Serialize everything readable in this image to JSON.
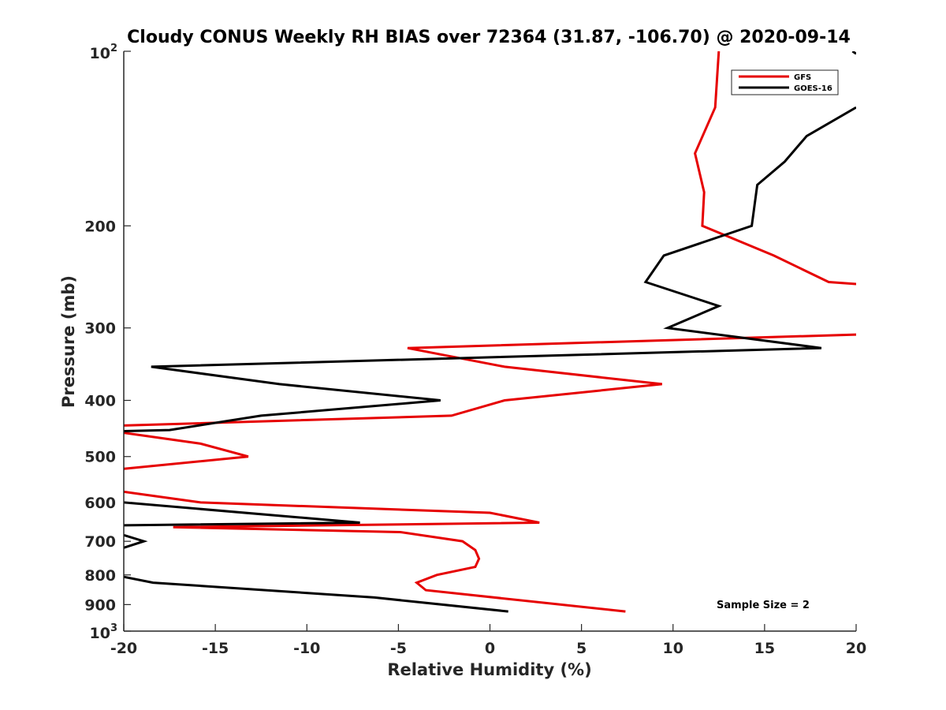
{
  "chart_data": {
    "type": "line",
    "title": "Cloudy CONUS Weekly RH BIAS over 72364 (31.87, -106.70) @ 2020-09-14",
    "xlabel": "Relative Humidity (%)",
    "ylabel": "Pressure (mb)",
    "xlim": [
      -20,
      20
    ],
    "ylim": [
      100,
      1000
    ],
    "y_scale": "log",
    "y_reversed": true,
    "x_ticks": [
      -20,
      -15,
      -10,
      -5,
      0,
      5,
      10,
      15,
      20
    ],
    "x_tick_labels": [
      "-20",
      "-15",
      "-10",
      "-5",
      "0",
      "5",
      "10",
      "15",
      "20"
    ],
    "y_tick_labels": [
      {
        "value": 100,
        "base": "10",
        "exp": "2"
      },
      {
        "value": 200,
        "base": "200",
        "exp": ""
      },
      {
        "value": 300,
        "base": "300",
        "exp": ""
      },
      {
        "value": 400,
        "base": "400",
        "exp": ""
      },
      {
        "value": 500,
        "base": "500",
        "exp": ""
      },
      {
        "value": 600,
        "base": "600",
        "exp": ""
      },
      {
        "value": 700,
        "base": "700",
        "exp": ""
      },
      {
        "value": 800,
        "base": "800",
        "exp": ""
      },
      {
        "value": 900,
        "base": "900",
        "exp": ""
      },
      {
        "value": 1000,
        "base": "10",
        "exp": "3"
      }
    ],
    "grid": false,
    "legend_position": "top-right",
    "annotation": "Sample Size = 2",
    "series": [
      {
        "name": "GFS",
        "color": "#e60000",
        "segments": [
          [
            [
              12.5,
              100
            ],
            [
              12.3,
              125
            ],
            [
              11.2,
              150
            ],
            [
              11.7,
              175
            ],
            [
              11.6,
              200
            ],
            [
              15.5,
              225
            ],
            [
              18.5,
              250
            ],
            [
              20,
              252
            ]
          ],
          [
            [
              20,
              308
            ],
            [
              -4.5,
              325
            ],
            [
              0.8,
              350
            ],
            [
              9.4,
              375
            ],
            [
              0.8,
              400
            ],
            [
              -2.1,
              425
            ],
            [
              -20,
              442
            ]
          ],
          [
            [
              -20,
              455
            ],
            [
              -15.8,
              475
            ],
            [
              -13.2,
              500
            ],
            [
              -20,
              525
            ]
          ],
          [
            [
              -20,
              575
            ],
            [
              -15.8,
              600
            ],
            [
              0,
              625
            ],
            [
              2.7,
              650
            ],
            [
              -17.3,
              662
            ],
            [
              -4.9,
              675
            ],
            [
              -1.5,
              700
            ],
            [
              -0.8,
              725
            ],
            [
              -0.6,
              750
            ],
            [
              -0.8,
              775
            ],
            [
              -2.9,
              800
            ],
            [
              -4.0,
              825
            ],
            [
              -3.5,
              850
            ],
            [
              7.4,
              925
            ]
          ]
        ]
      },
      {
        "name": "GOES-16",
        "color": "#000000",
        "segments": [
          [
            [
              19.8,
              100
            ],
            [
              20,
              101
            ]
          ],
          [
            [
              20,
              125
            ],
            [
              17.3,
              140
            ],
            [
              16.1,
              155
            ],
            [
              14.6,
              170
            ],
            [
              14.3,
              200
            ],
            [
              9.5,
              225
            ],
            [
              8.5,
              250
            ],
            [
              12.5,
              275
            ],
            [
              9.7,
              300
            ],
            [
              18.1,
              325
            ],
            [
              -18.5,
              350
            ],
            [
              -11.5,
              375
            ],
            [
              -2.7,
              400
            ],
            [
              -12.5,
              425
            ],
            [
              -17.5,
              450
            ],
            [
              -20,
              452
            ]
          ],
          [
            [
              -20,
              600
            ],
            [
              -7.1,
              650
            ],
            [
              -20,
              657
            ]
          ],
          [
            [
              -20,
              683
            ],
            [
              -18.9,
              700
            ],
            [
              -20,
              718
            ]
          ],
          [
            [
              -20,
              806
            ],
            [
              -18.4,
              825
            ],
            [
              -6.3,
              875
            ],
            [
              1.0,
              925
            ]
          ]
        ]
      }
    ]
  }
}
